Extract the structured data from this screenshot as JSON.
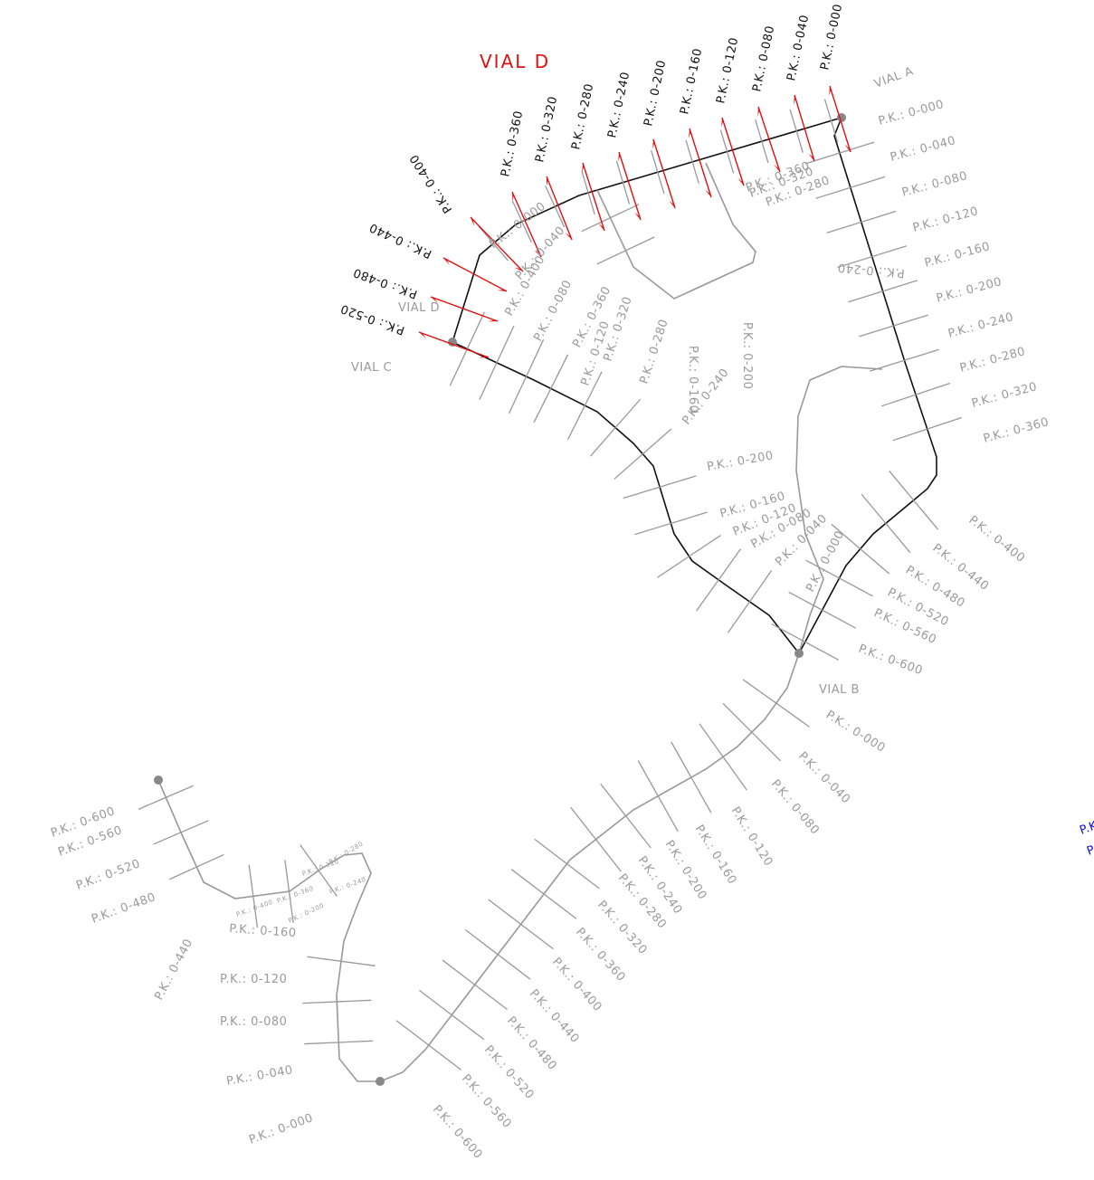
{
  "title": "VIAL D",
  "road_names": [
    "VIAL A",
    "VIAL B",
    "VIAL C",
    "VIAL D"
  ],
  "vial_d_stations": [
    "P.K.: 0-000",
    "P.K.: 0-040",
    "P.K.: 0-080",
    "P.K.: 0-120",
    "P.K.: 0-160",
    "P.K.: 0-200",
    "P.K.: 0-240",
    "P.K.: 0-280",
    "P.K.: 0-320",
    "P.K.: 0-360",
    "P.K.: 0-400",
    "P.K.: 0-440",
    "P.K.: 0-480",
    "P.K.: 0-520"
  ],
  "vial_a_stations": [
    "P.K.: 0-000",
    "P.K.: 0-040",
    "P.K.: 0-080",
    "P.K.: 0-120",
    "P.K.: 0-160",
    "P.K.: 0-200",
    "P.K.: 0-240",
    "P.K.: 0-280",
    "P.K.: 0-320",
    "P.K.: 0-360",
    "P.K.: 0-400",
    "P.K.: 0-440",
    "P.K.: 0-480",
    "P.K.: 0-520",
    "P.K.: 0-560",
    "P.K.: 0-600"
  ],
  "vial_b_stations": [
    "P.K.: 0-000",
    "P.K.: 0-040",
    "P.K.: 0-080",
    "P.K.: 0-120",
    "P.K.: 0-160",
    "P.K.: 0-200",
    "P.K.: 0-240",
    "P.K.: 0-280",
    "P.K.: 0-320",
    "P.K.: 0-360",
    "P.K.: 0-400",
    "P.K.: 0-440",
    "P.K.: 0-480",
    "P.K.: 0-520",
    "P.K.: 0-560",
    "P.K.: 0-600"
  ],
  "interior_stations": [
    "P.K.: 0-360",
    "P.K.: 0-320",
    "P.K.: 0-280",
    "P.K.: 0-240",
    "P.K.: 0-000",
    "P.K.: 0-040",
    "P.K.: 0-400",
    "P.K.: 0-080",
    "P.K.: 0-360",
    "P.K.: 0-120",
    "P.K.: 0-320",
    "P.K.: 0-280",
    "P.K.: 0-160",
    "P.K.: 0-200",
    "P.K.: 0-240",
    "P.K.: 0-200",
    "P.K.: 0-160",
    "P.K.: 0-120",
    "P.K.: 0-080",
    "P.K.: 0-040",
    "P.K.: 0-000"
  ],
  "bottom_stations": [
    "P.K.: 0-600",
    "P.K.: 0-560",
    "P.K.: 0-520",
    "P.K.: 0-480",
    "P.K.: 0-440",
    "P.K.: 0-160",
    "P.K.: 0-120",
    "P.K.: 0-080",
    "P.K.: 0-040",
    "P.K.: 0-000"
  ],
  "bottom_small_stations": [
    "P.K.: 0-400",
    "P.K.: 0-360",
    "P.K.: 0-320",
    "P.K.: 0-280",
    "P.K.: 0-240",
    "P.K.: 0-200"
  ],
  "edge_text": [
    "P.K",
    "P"
  ]
}
